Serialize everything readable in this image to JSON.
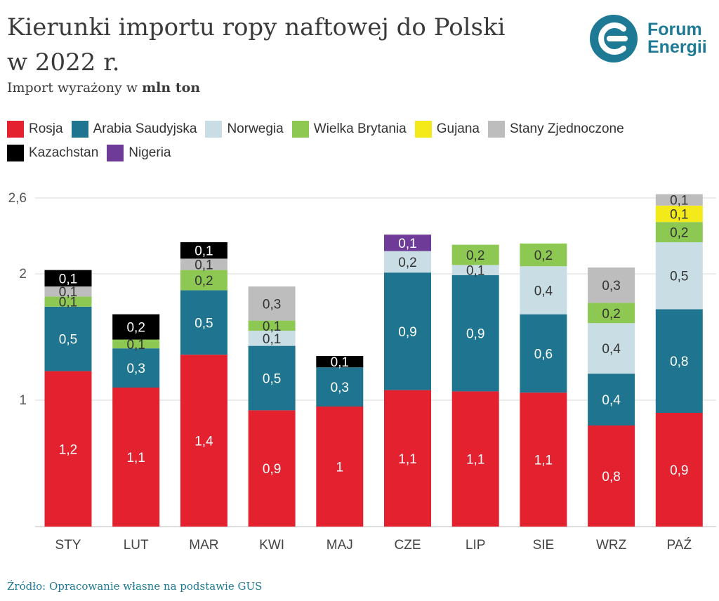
{
  "header": {
    "title_line1": "Kierunki importu ropy naftowej do Polski",
    "title_line2": "w 2022 r.",
    "subtitle_prefix": "Import wyrażony w ",
    "subtitle_bold": "mln ton"
  },
  "logo": {
    "line1": "Forum",
    "line2": "Energii",
    "color": "#1e7a94"
  },
  "source": "Źródło: Opracowanie własne na podstawie GUS",
  "chart_data": {
    "type": "bar",
    "stacked": true,
    "title": "Kierunki importu ropy naftowej do Polski w 2022 r.",
    "ylabel": "mln ton",
    "ylim": [
      0,
      2.6
    ],
    "yticks": [
      {
        "value": 1,
        "label": "1"
      },
      {
        "value": 2,
        "label": "2"
      },
      {
        "value": 2.6,
        "label": "2,6"
      }
    ],
    "categories": [
      "STY",
      "LUT",
      "MAR",
      "KWI",
      "MAJ",
      "CZE",
      "LIP",
      "SIE",
      "WRZ",
      "PAŹ"
    ],
    "legend_position": "top-left",
    "series": [
      {
        "name": "Rosja",
        "color": "#e3212f",
        "label_color": "#ffffff",
        "values": [
          1.23,
          1.1,
          1.36,
          0.92,
          0.95,
          1.08,
          1.07,
          1.06,
          0.8,
          0.9
        ],
        "labels": [
          "1,2",
          "1,1",
          "1,4",
          "0,9",
          "1",
          "1,1",
          "1,1",
          "1,1",
          "0,8",
          "0,9"
        ]
      },
      {
        "name": "Arabia Saudyjska",
        "color": "#1f7590",
        "label_color": "#ffffff",
        "values": [
          0.51,
          0.31,
          0.51,
          0.51,
          0.31,
          0.93,
          0.92,
          0.62,
          0.41,
          0.82
        ],
        "labels": [
          "0,5",
          "0,3",
          "0,5",
          "0,5",
          "0,3",
          "0,9",
          "0,9",
          "0,6",
          "0,4",
          "0,8"
        ]
      },
      {
        "name": "Norwegia",
        "color": "#c9dde5",
        "label_color": "#333333",
        "values": [
          0,
          0,
          0,
          0.12,
          0,
          0.17,
          0.08,
          0.38,
          0.4,
          0.53
        ],
        "labels": [
          "",
          "",
          "",
          "0,1",
          "",
          "0,2",
          "0,1",
          "0,4",
          "0,4",
          "0,5"
        ]
      },
      {
        "name": "Wielka Brytania",
        "color": "#8dc853",
        "label_color": "#333333",
        "values": [
          0.08,
          0.07,
          0.16,
          0.08,
          0,
          0,
          0.16,
          0.18,
          0.16,
          0.16
        ],
        "labels": [
          "0,1",
          "0,1",
          "0,2",
          "0,1",
          "",
          "",
          "0,2",
          "0,2",
          "0,2",
          "0,2"
        ]
      },
      {
        "name": "Gujana",
        "color": "#f4ea1a",
        "label_color": "#333333",
        "values": [
          0,
          0,
          0,
          0,
          0,
          0,
          0,
          0,
          0,
          0.13
        ],
        "labels": [
          "",
          "",
          "",
          "",
          "",
          "",
          "",
          "",
          "",
          "0,1"
        ]
      },
      {
        "name": "Stany Zjednoczone",
        "color": "#bdbdbd",
        "label_color": "#333333",
        "values": [
          0.08,
          0,
          0.09,
          0.27,
          0,
          0,
          0,
          0,
          0.28,
          0.09
        ],
        "labels": [
          "0,1",
          "",
          "0,1",
          "0,3",
          "",
          "",
          "",
          "",
          "0,3",
          "0,1"
        ]
      },
      {
        "name": "Kazachstan",
        "color": "#000000",
        "label_color": "#ffffff",
        "values": [
          0.13,
          0.2,
          0.13,
          0,
          0.09,
          0,
          0,
          0,
          0,
          0
        ],
        "labels": [
          "0,1",
          "0,2",
          "0,1",
          "",
          "0,1",
          "",
          "",
          "",
          "",
          ""
        ]
      },
      {
        "name": "Nigeria",
        "color": "#6e3c98",
        "label_color": "#ffffff",
        "values": [
          0,
          0,
          0,
          0,
          0,
          0.13,
          0,
          0,
          0,
          0
        ],
        "labels": [
          "",
          "",
          "",
          "",
          "",
          "0,1",
          "",
          "",
          "",
          ""
        ]
      }
    ]
  }
}
